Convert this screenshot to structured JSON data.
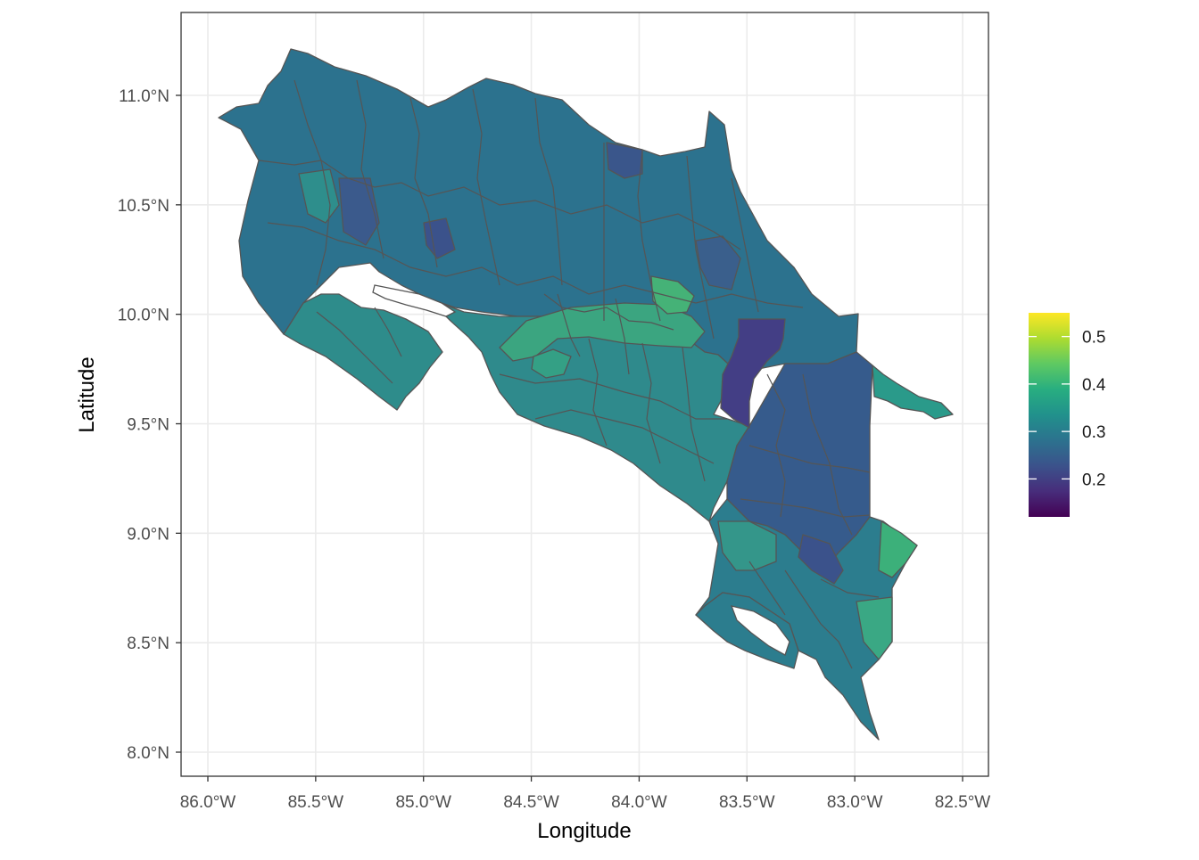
{
  "map": {
    "x_axis": {
      "title": "Longitude",
      "ticks": [
        "86.0°W",
        "85.5°W",
        "85.0°W",
        "84.5°W",
        "84.0°W",
        "83.5°W",
        "83.0°W",
        "82.5°W"
      ],
      "values": [
        -86.0,
        -85.5,
        -85.0,
        -84.5,
        -84.0,
        -83.5,
        -83.0,
        -82.5
      ]
    },
    "y_axis": {
      "title": "Latitude",
      "ticks": [
        "11.0°N",
        "10.5°N",
        "10.0°N",
        "9.5°N",
        "9.0°N",
        "8.5°N",
        "8.0°N"
      ],
      "values": [
        11.0,
        10.5,
        10.0,
        9.5,
        9.0,
        8.5,
        8.0
      ]
    },
    "legend": {
      "placement": "right",
      "labels": [
        "0.5",
        "0.4",
        "0.3",
        "0.2"
      ],
      "values": [
        0.5,
        0.4,
        0.3,
        0.2
      ],
      "range": [
        0.12,
        0.55
      ],
      "palette": "viridis"
    },
    "grid": true,
    "colors": {
      "border": "#555555",
      "water": "#ffffff",
      "dominant": "#2c728e",
      "lowest_region": "#433e85",
      "high_regions": "#4ac16d"
    }
  }
}
